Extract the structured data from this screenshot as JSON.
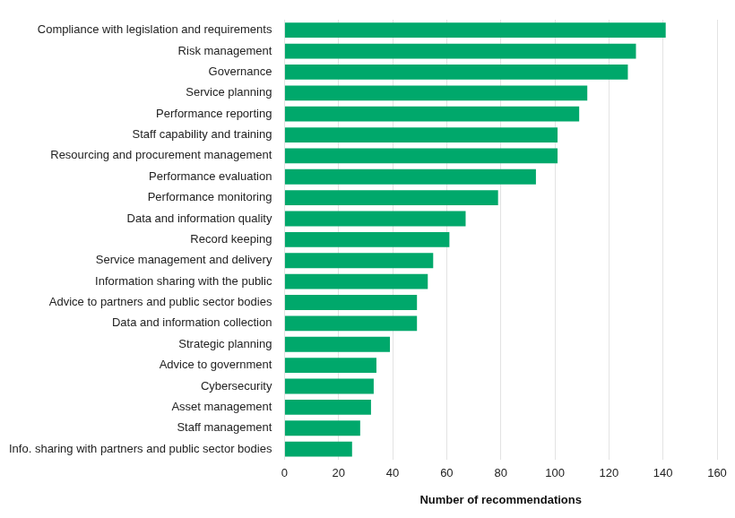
{
  "chart_data": {
    "type": "bar",
    "orientation": "horizontal",
    "x_label": "Number of recommendations",
    "categories": [
      "Compliance with legislation and requirements",
      "Risk management",
      "Governance",
      "Service planning",
      "Performance reporting",
      "Staff capability and training",
      "Resourcing and procurement management",
      "Performance evaluation",
      "Performance monitoring",
      "Data and information quality",
      "Record keeping",
      "Service management and delivery",
      "Information sharing with the public",
      "Advice to partners and public sector bodies",
      "Data and information collection",
      "Strategic planning",
      "Advice to government",
      "Cybersecurity",
      "Asset management",
      "Staff management",
      "Info. sharing with partners and public sector bodies"
    ],
    "values": [
      141,
      130,
      127,
      112,
      109,
      101,
      101,
      93,
      79,
      67,
      61,
      55,
      53,
      49,
      49,
      39,
      34,
      33,
      32,
      28,
      25
    ],
    "color": "#00a86b",
    "xlim": [
      0,
      160
    ],
    "xticks": [
      0,
      20,
      40,
      60,
      80,
      100,
      120,
      140,
      160
    ],
    "grid": true
  }
}
